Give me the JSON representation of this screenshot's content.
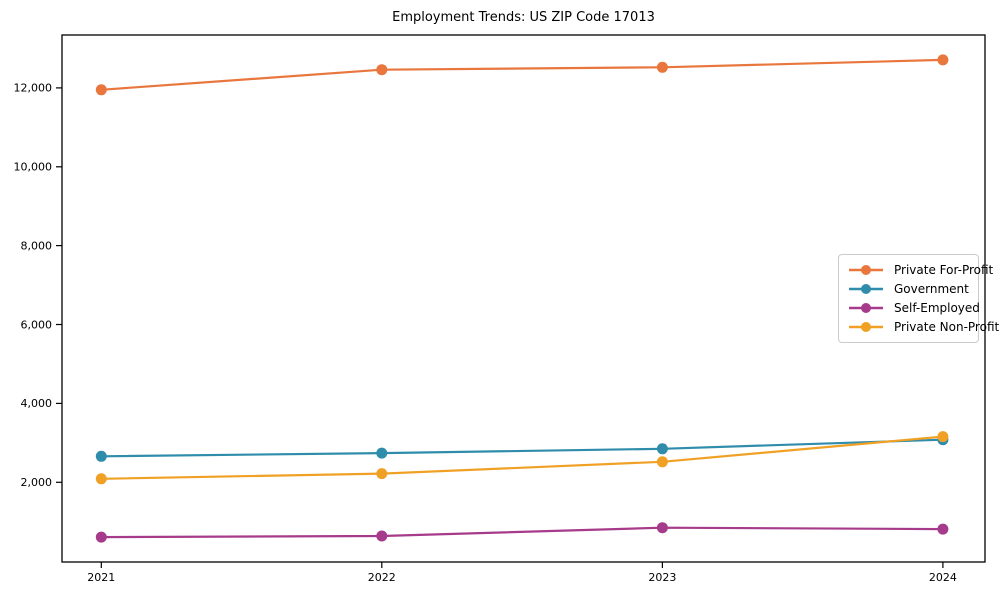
{
  "chart_data": {
    "type": "line",
    "title": "Employment Trends: US ZIP Code 17013",
    "xlabel": "",
    "ylabel": "",
    "x": [
      2021,
      2022,
      2023,
      2024
    ],
    "xticks": [
      "2021",
      "2022",
      "2023",
      "2024"
    ],
    "yticks": [
      {
        "value": 2000,
        "label": "2,000"
      },
      {
        "value": 4000,
        "label": "4,000"
      },
      {
        "value": 6000,
        "label": "6,000"
      },
      {
        "value": 8000,
        "label": "8,000"
      },
      {
        "value": 10000,
        "label": "10,000"
      },
      {
        "value": 12000,
        "label": "12,000"
      }
    ],
    "series": [
      {
        "name": "Private For-Profit",
        "color": "#e8763d",
        "values": [
          11950,
          12460,
          12520,
          12710
        ]
      },
      {
        "name": "Government",
        "color": "#2f8dab",
        "values": [
          2660,
          2740,
          2850,
          3080
        ]
      },
      {
        "name": "Self-Employed",
        "color": "#a63a8b",
        "values": [
          610,
          640,
          850,
          815
        ]
      },
      {
        "name": "Private Non-Profit",
        "color": "#f0a125",
        "values": [
          2090,
          2220,
          2520,
          3160
        ]
      }
    ],
    "xlim": [
      2020.86,
      2024.15
    ],
    "ylim": [
      -20,
      13340
    ],
    "grid": false,
    "legend_position": "center right",
    "frame_color": "#000000"
  }
}
